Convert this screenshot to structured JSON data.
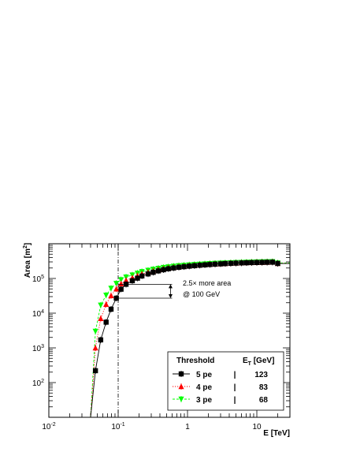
{
  "chart_data": {
    "type": "line",
    "title": "",
    "xlabel": "E [TeV]",
    "ylabel": "Area [m",
    "ylabel_sup": "2",
    "ylabel_tail": "]",
    "xscale": "log",
    "yscale": "log",
    "xlim": [
      0.01,
      30
    ],
    "ylim": [
      10,
      1000000
    ],
    "grid": false,
    "legend_position": "bottom-right",
    "x_tick_labels": [
      {
        "value": 0.01,
        "base": "10",
        "exp": "-2"
      },
      {
        "value": 0.1,
        "base": "10",
        "exp": "-1"
      },
      {
        "value": 1,
        "base": "1",
        "exp": ""
      },
      {
        "value": 10,
        "base": "10",
        "exp": ""
      }
    ],
    "y_tick_labels": [
      {
        "value": 100,
        "base": "10",
        "exp": "2"
      },
      {
        "value": 1000,
        "base": "10",
        "exp": "3"
      },
      {
        "value": 10000,
        "base": "10",
        "exp": "4"
      },
      {
        "value": 100000,
        "base": "10",
        "exp": "5"
      }
    ],
    "x": [
      0.04,
      0.047,
      0.056,
      0.067,
      0.079,
      0.094,
      0.11,
      0.13,
      0.16,
      0.19,
      0.22,
      0.27,
      0.32,
      0.38,
      0.45,
      0.53,
      0.63,
      0.75,
      0.89,
      1.06,
      1.26,
      1.5,
      1.78,
      2.1,
      2.5,
      3.0,
      3.5,
      4.2,
      5.0,
      6.0,
      7.1,
      8.4,
      10.0,
      11.9,
      14.1,
      16.8,
      20.0
    ],
    "series": [
      {
        "name": "5  pe",
        "color": "#000000",
        "marker": "square",
        "line": "solid",
        "values": [
          null,
          220,
          1700,
          5500,
          13000,
          27000,
          49000,
          68000,
          86000,
          102000,
          118000,
          135000,
          150000,
          165000,
          178000,
          190000,
          200000,
          210000,
          218000,
          226000,
          233000,
          240000,
          246000,
          252000,
          258000,
          263000,
          268000,
          272000,
          276000,
          280000,
          283000,
          286000,
          288000,
          290000,
          292000,
          294000,
          270000
        ]
      },
      {
        "name": "4  pe",
        "color": "#ff0000",
        "marker": "triangle-up",
        "line": "dotted",
        "values": [
          null,
          1000,
          7000,
          18000,
          32000,
          50000,
          70000,
          88000,
          104000,
          120000,
          135000,
          150000,
          164000,
          177000,
          189000,
          199000,
          208000,
          217000,
          224000,
          231000,
          238000,
          244000,
          250000,
          255000,
          260000,
          265000,
          270000,
          274000,
          278000,
          282000,
          285000,
          288000,
          290000,
          292000,
          294000,
          296000,
          272000
        ]
      },
      {
        "name": "3  pe",
        "color": "#00ff00",
        "marker": "triangle-down",
        "line": "dashed",
        "values": [
          null,
          3000,
          17000,
          33000,
          52000,
          72000,
          92000,
          110000,
          126000,
          142000,
          157000,
          171000,
          184000,
          196000,
          207000,
          216000,
          225000,
          233000,
          240000,
          246000,
          252000,
          258000,
          263000,
          268000,
          272000,
          276000,
          280000,
          284000,
          287000,
          290000,
          293000,
          296000,
          298000,
          300000,
          302000,
          304000,
          280000
        ]
      }
    ],
    "threshold_line": {
      "x": 0.1
    },
    "annotation": {
      "line1_prefix": "2.5",
      "line1_times": "×",
      "line1_suffix": " more area",
      "line2": "@ 100 GeV",
      "upper": 68000,
      "lower": 27000,
      "x_from": 0.1,
      "x_to": 0.6
    },
    "legend": {
      "header_left": "Threshold",
      "header_right_main": "E",
      "header_right_sub": "T",
      "header_right_tail": " [GeV]",
      "separator": "|",
      "rows": [
        {
          "label": "5  pe",
          "value": "123"
        },
        {
          "label": "4  pe",
          "value": "83"
        },
        {
          "label": "3  pe",
          "value": "68"
        }
      ]
    }
  }
}
